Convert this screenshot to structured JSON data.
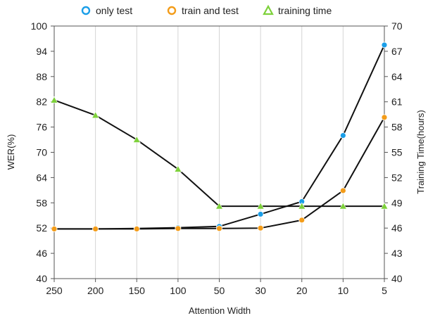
{
  "chart_data": {
    "type": "line",
    "title": "",
    "xlabel": "Attention Width",
    "ylabel": "WER(%)",
    "y2label": "Training Time(hours)",
    "categories": [
      "250",
      "200",
      "150",
      "100",
      "50",
      "30",
      "20",
      "10",
      "5"
    ],
    "ylim": [
      40,
      100
    ],
    "yticks": [
      40,
      46,
      52,
      58,
      64,
      70,
      76,
      82,
      88,
      94,
      100
    ],
    "y2lim": [
      40,
      70
    ],
    "y2ticks": [
      "40",
      "43",
      "46",
      "49",
      "52",
      "55",
      "58",
      "61",
      "64",
      "67",
      "70"
    ],
    "grid": "vertical only",
    "legend_position": "top",
    "series": [
      {
        "name": "only test",
        "axis": "left",
        "color": "#1a9ee8",
        "marker": "circle",
        "values": [
          51.8,
          51.8,
          51.9,
          52.1,
          52.4,
          55.3,
          58.3,
          74.0,
          95.5
        ]
      },
      {
        "name": "train and test",
        "axis": "left",
        "color": "#f39c19",
        "marker": "circle",
        "values": [
          51.8,
          51.8,
          51.8,
          51.9,
          51.9,
          52.0,
          53.9,
          60.9,
          78.3
        ]
      },
      {
        "name": "training time",
        "axis": "right",
        "color": "#7dd13a",
        "marker": "triangle",
        "values": [
          61.2,
          59.4,
          56.5,
          53.0,
          48.6,
          48.6,
          48.6,
          48.6,
          48.6
        ]
      }
    ]
  }
}
